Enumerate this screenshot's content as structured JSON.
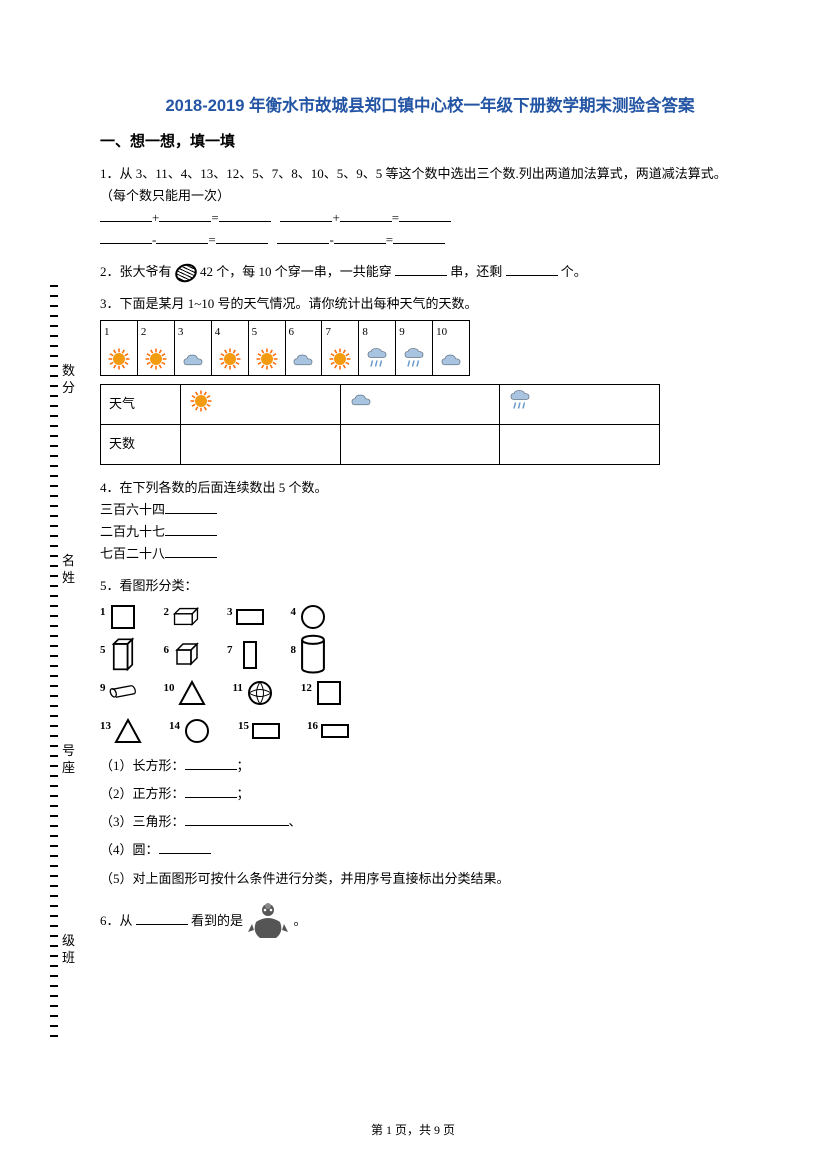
{
  "title": "2018-2019 年衡水市故城县郑口镇中心校一年级下册数学期末测验含答案",
  "section": "一、想一想，填一填",
  "side": {
    "score": "数分",
    "name": "名姓",
    "seat": "号座",
    "class": "级班"
  },
  "q1": {
    "prefix": "1．从 3、11、4、13、12、5、7、8、10、5、9、5 等这个数中选出三个数.列出两道加法算式，两道减法算式。",
    "note": "（每个数只能用一次）"
  },
  "q2": {
    "text_a": "2．张大爷有 ",
    "text_b": " 42 个，每 10 个穿一串，一共能穿",
    "text_c": "串，还剩",
    "text_d": "个。"
  },
  "q3": {
    "text": "3．下面是某月 1~10 号的天气情况。请你统计出每种天气的天数。",
    "days": [
      "1",
      "2",
      "3",
      "4",
      "5",
      "6",
      "7",
      "8",
      "9",
      "10"
    ],
    "weather_pattern": [
      "sun",
      "sun",
      "cloud",
      "sun",
      "sun",
      "cloud",
      "sun",
      "rain",
      "rain",
      "cloud"
    ],
    "row1": "天气",
    "row2": "天数"
  },
  "q4": {
    "text": "4．在下列各数的后面连续数出 5 个数。",
    "a": "三百六十四",
    "b": "二百九十七",
    "c": "七百二十八"
  },
  "q5": {
    "text": "5．看图形分类：",
    "labels": [
      "1",
      "2",
      "3",
      "4",
      "5",
      "6",
      "7",
      "8",
      "9",
      "10",
      "11",
      "12",
      "13",
      "14",
      "15",
      "16"
    ],
    "a1": "（1）长方形：",
    "a1_suffix": "；",
    "a2": "（2）正方形：",
    "a2_suffix": "；",
    "a3": "（3）三角形：",
    "a3_suffix": "、",
    "a4": "（4）圆：",
    "a5": "（5）对上面图形可按什么条件进行分类，并用序号直接标出分类结果。"
  },
  "q6": {
    "text_a": "6．从",
    "text_b": "看到的是",
    "text_c": "。"
  },
  "footer": "第 1 页，共 9 页",
  "colors": {
    "title": "#2455a4",
    "sun": "#f39c12",
    "sun_glow": "#ff6600",
    "cloud": "#a8c4e0",
    "rain": "#6699cc"
  }
}
